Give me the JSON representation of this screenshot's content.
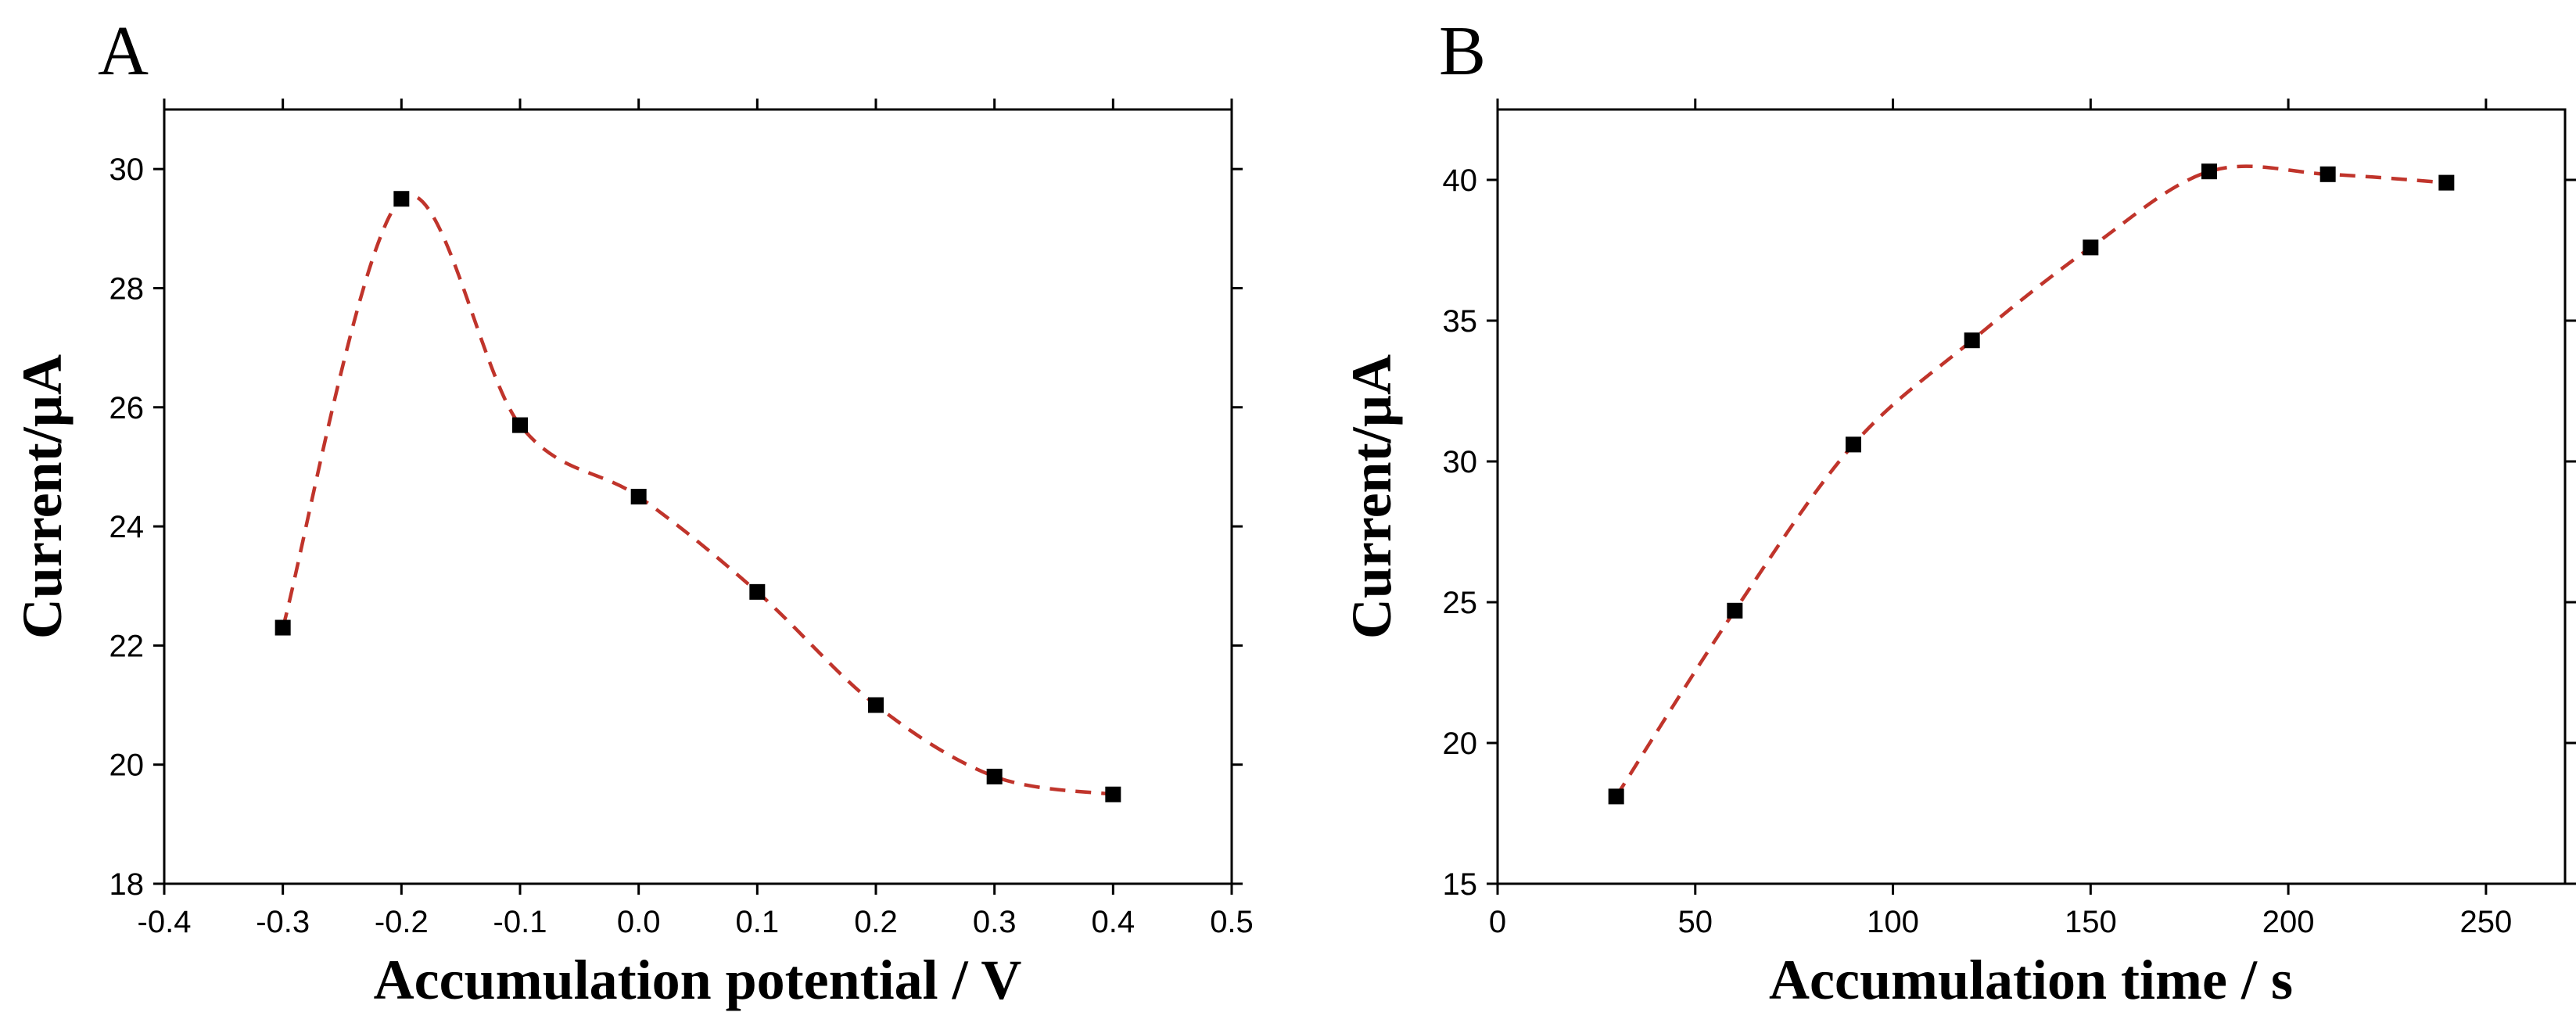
{
  "chart_data": [
    {
      "panel": "A",
      "type": "line",
      "title": "",
      "xlabel": "Accumulation potential / V",
      "ylabel": "Current/µA",
      "xlim": [
        -0.4,
        0.5
      ],
      "ylim": [
        18,
        31
      ],
      "xticks": [
        -0.4,
        -0.3,
        -0.2,
        -0.1,
        0.0,
        0.1,
        0.2,
        0.3,
        0.4,
        0.5
      ],
      "xtick_labels": [
        "-0.4",
        "-0.3",
        "-0.2",
        "-0.1",
        "0.0",
        "0.1",
        "0.2",
        "0.3",
        "0.4",
        "0.5"
      ],
      "yticks": [
        18,
        20,
        22,
        24,
        26,
        28,
        30
      ],
      "ytick_labels": [
        "18",
        "20",
        "22",
        "24",
        "26",
        "28",
        "30"
      ],
      "series": [
        {
          "name": "Current",
          "x": [
            -0.3,
            -0.2,
            -0.1,
            0.0,
            0.1,
            0.2,
            0.3,
            0.4
          ],
          "y": [
            22.3,
            29.5,
            25.7,
            24.5,
            22.9,
            21.0,
            19.8,
            19.5
          ],
          "line_color": "#c0342b",
          "line_style": "dashed",
          "marker": "square",
          "marker_color": "#000000"
        }
      ],
      "grid": false
    },
    {
      "panel": "B",
      "type": "line",
      "title": "",
      "xlabel": "Accumulation time / s",
      "ylabel": "Current/µA",
      "xlim": [
        0,
        270
      ],
      "ylim": [
        15,
        42.5
      ],
      "xticks": [
        0,
        50,
        100,
        150,
        200,
        250
      ],
      "xtick_labels": [
        "0",
        "50",
        "100",
        "150",
        "200",
        "250"
      ],
      "yticks": [
        15,
        20,
        25,
        30,
        35,
        40
      ],
      "ytick_labels": [
        "15",
        "20",
        "25",
        "30",
        "35",
        "40"
      ],
      "series": [
        {
          "name": "Current",
          "x": [
            30,
            60,
            90,
            120,
            150,
            180,
            210,
            240
          ],
          "y": [
            18.1,
            24.7,
            30.6,
            34.3,
            37.6,
            40.3,
            40.2,
            39.9
          ],
          "line_color": "#c0342b",
          "line_style": "dashed",
          "marker": "square",
          "marker_color": "#000000"
        }
      ],
      "grid": false
    }
  ]
}
